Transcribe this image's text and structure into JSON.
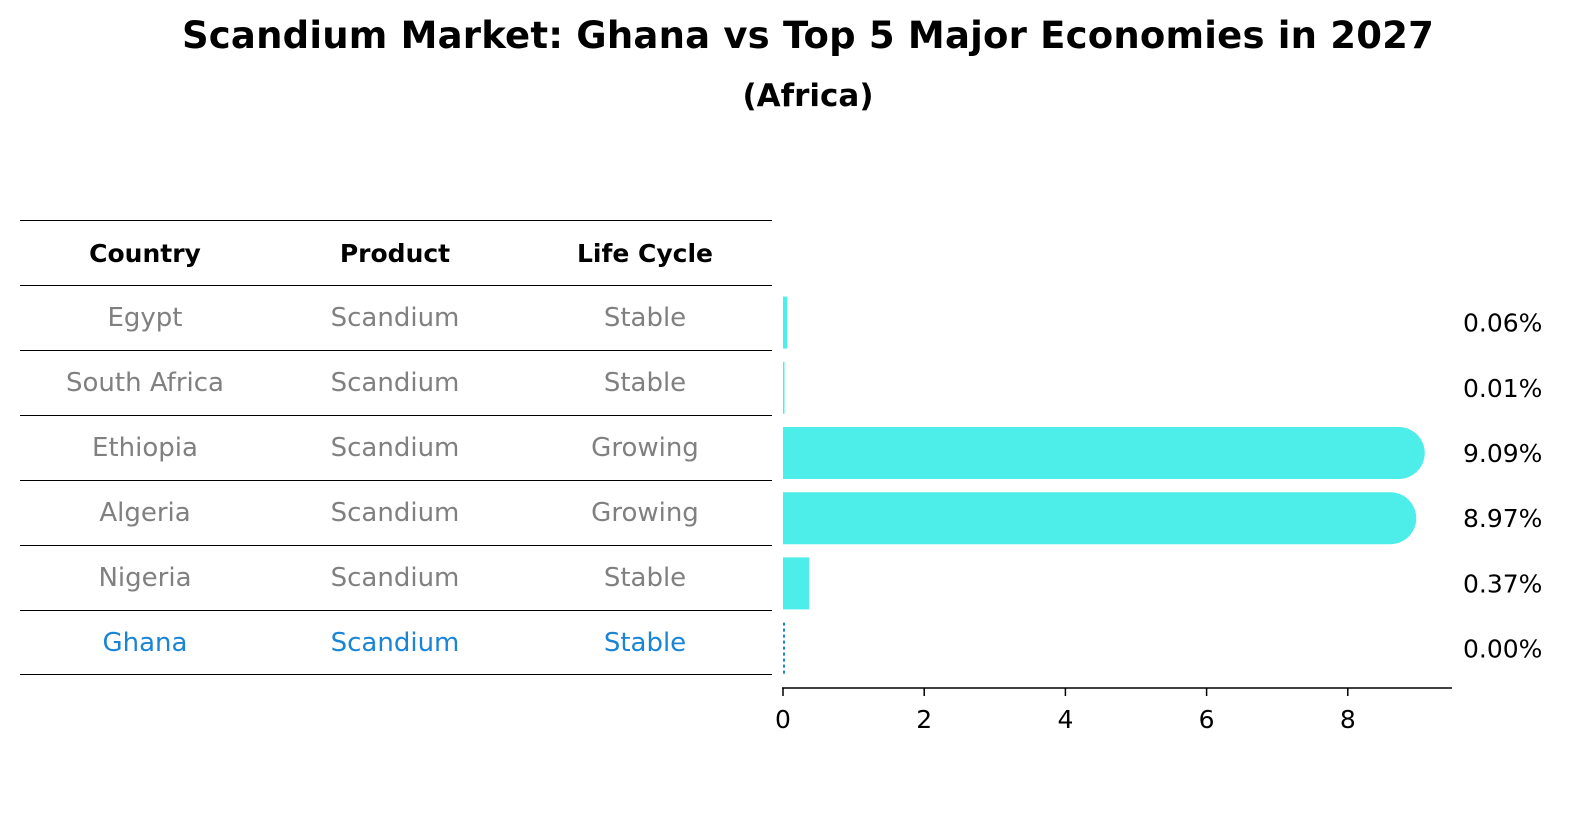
{
  "title": "Scandium Market: Ghana vs Top 5 Major Economies in 2027",
  "subtitle": "(Africa)",
  "table": {
    "headers": [
      "Country",
      "Product",
      "Life Cycle"
    ],
    "rows": [
      {
        "country": "Egypt",
        "product": "Scandium",
        "life_cycle": "Stable"
      },
      {
        "country": "South Africa",
        "product": "Scandium",
        "life_cycle": "Stable"
      },
      {
        "country": "Ethiopia",
        "product": "Scandium",
        "life_cycle": "Growing"
      },
      {
        "country": "Algeria",
        "product": "Scandium",
        "life_cycle": "Growing"
      },
      {
        "country": "Nigeria",
        "product": "Scandium",
        "life_cycle": "Stable"
      },
      {
        "country": "Ghana",
        "product": "Scandium",
        "life_cycle": "Stable"
      }
    ]
  },
  "chart_data": {
    "type": "bar",
    "orientation": "horizontal",
    "categories": [
      "Egypt",
      "South Africa",
      "Ethiopia",
      "Algeria",
      "Nigeria",
      "Ghana"
    ],
    "values": [
      0.06,
      0.01,
      9.09,
      8.97,
      0.37,
      0.0
    ],
    "value_labels": [
      "0.06%",
      "0.01%",
      "9.09%",
      "8.97%",
      "0.37%",
      "0.00%"
    ],
    "highlight": "Ghana",
    "xlim": [
      0,
      9.5
    ],
    "xticks": [
      0,
      2,
      4,
      6,
      8
    ],
    "bar_color": "#4deeea",
    "highlight_color": "#1a85d6"
  }
}
